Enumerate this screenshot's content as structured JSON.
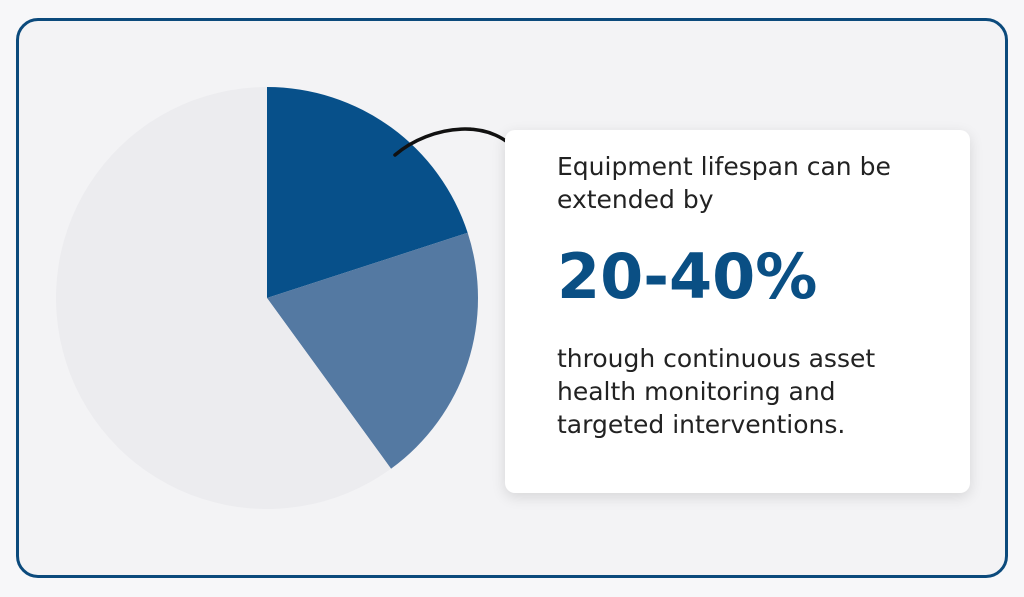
{
  "chart_data": {
    "type": "pie",
    "values": [
      20,
      20,
      60
    ],
    "colors": [
      "#07508a",
      "#5479a2",
      "#ececef"
    ]
  },
  "card": {
    "intro": "Equipment lifespan can be extended by",
    "highlight": "20-40%",
    "body": "through continuous asset health monitoring and targeted interventions."
  }
}
